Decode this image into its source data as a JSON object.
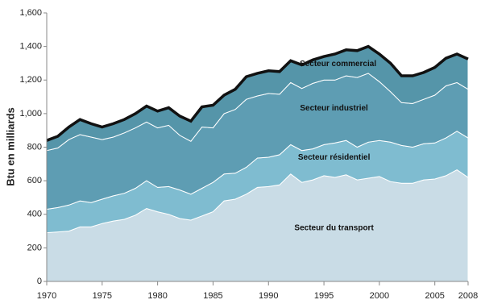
{
  "chart_data": {
    "type": "stacked-area",
    "y_label": "Btu en milliards",
    "x": [
      1970,
      1971,
      1972,
      1973,
      1974,
      1975,
      1976,
      1977,
      1978,
      1979,
      1980,
      1981,
      1982,
      1983,
      1984,
      1985,
      1986,
      1987,
      1988,
      1989,
      1990,
      1991,
      1992,
      1993,
      1994,
      1995,
      1996,
      1997,
      1998,
      1999,
      2000,
      2001,
      2002,
      2003,
      2004,
      2005,
      2006,
      2007,
      2008
    ],
    "series": [
      {
        "name": "Secteur du transport",
        "color": "#c9dce6",
        "values": [
          290,
          295,
          300,
          325,
          325,
          345,
          360,
          370,
          395,
          435,
          415,
          400,
          375,
          365,
          390,
          415,
          480,
          490,
          520,
          560,
          565,
          575,
          640,
          590,
          605,
          630,
          620,
          635,
          605,
          615,
          625,
          595,
          585,
          585,
          605,
          610,
          630,
          665,
          620
        ]
      },
      {
        "name": "Secteur résidentiel",
        "color": "#7fbcd0",
        "values": [
          140,
          145,
          155,
          155,
          145,
          145,
          150,
          155,
          160,
          165,
          145,
          165,
          170,
          155,
          165,
          175,
          160,
          155,
          160,
          175,
          175,
          180,
          175,
          190,
          185,
          185,
          205,
          205,
          195,
          215,
          215,
          235,
          225,
          215,
          215,
          215,
          225,
          230,
          235
        ]
      },
      {
        "name": "Secteur industriel",
        "color": "#5e9db3",
        "values": [
          350,
          355,
          390,
          395,
          390,
          355,
          350,
          360,
          360,
          350,
          355,
          365,
          325,
          315,
          365,
          325,
          360,
          380,
          405,
          370,
          380,
          360,
          370,
          370,
          390,
          385,
          375,
          385,
          415,
          410,
          350,
          300,
          255,
          260,
          265,
          285,
          310,
          290,
          290
        ]
      },
      {
        "name": "Secteur commercial",
        "color": "#5595a9",
        "values": [
          60,
          70,
          75,
          90,
          80,
          75,
          80,
          80,
          85,
          95,
          100,
          105,
          115,
          120,
          120,
          135,
          110,
          120,
          135,
          135,
          135,
          135,
          130,
          140,
          140,
          140,
          155,
          155,
          160,
          160,
          165,
          170,
          160,
          165,
          160,
          165,
          165,
          170,
          180
        ]
      }
    ],
    "xlim": [
      1970,
      2008
    ],
    "xticks": [
      1970,
      1975,
      1980,
      1985,
      1990,
      1995,
      2000,
      2005,
      2008
    ],
    "ylim": [
      0,
      1600
    ],
    "yticks": [
      0,
      200,
      400,
      600,
      800,
      {
        "value": 1000,
        "label": "1,000"
      },
      {
        "value": 1200,
        "label": "1,200"
      },
      {
        "value": 1400,
        "label": "1,400"
      },
      {
        "value": 1600,
        "label": "1,600"
      }
    ],
    "top_outline_color": "#111111"
  }
}
